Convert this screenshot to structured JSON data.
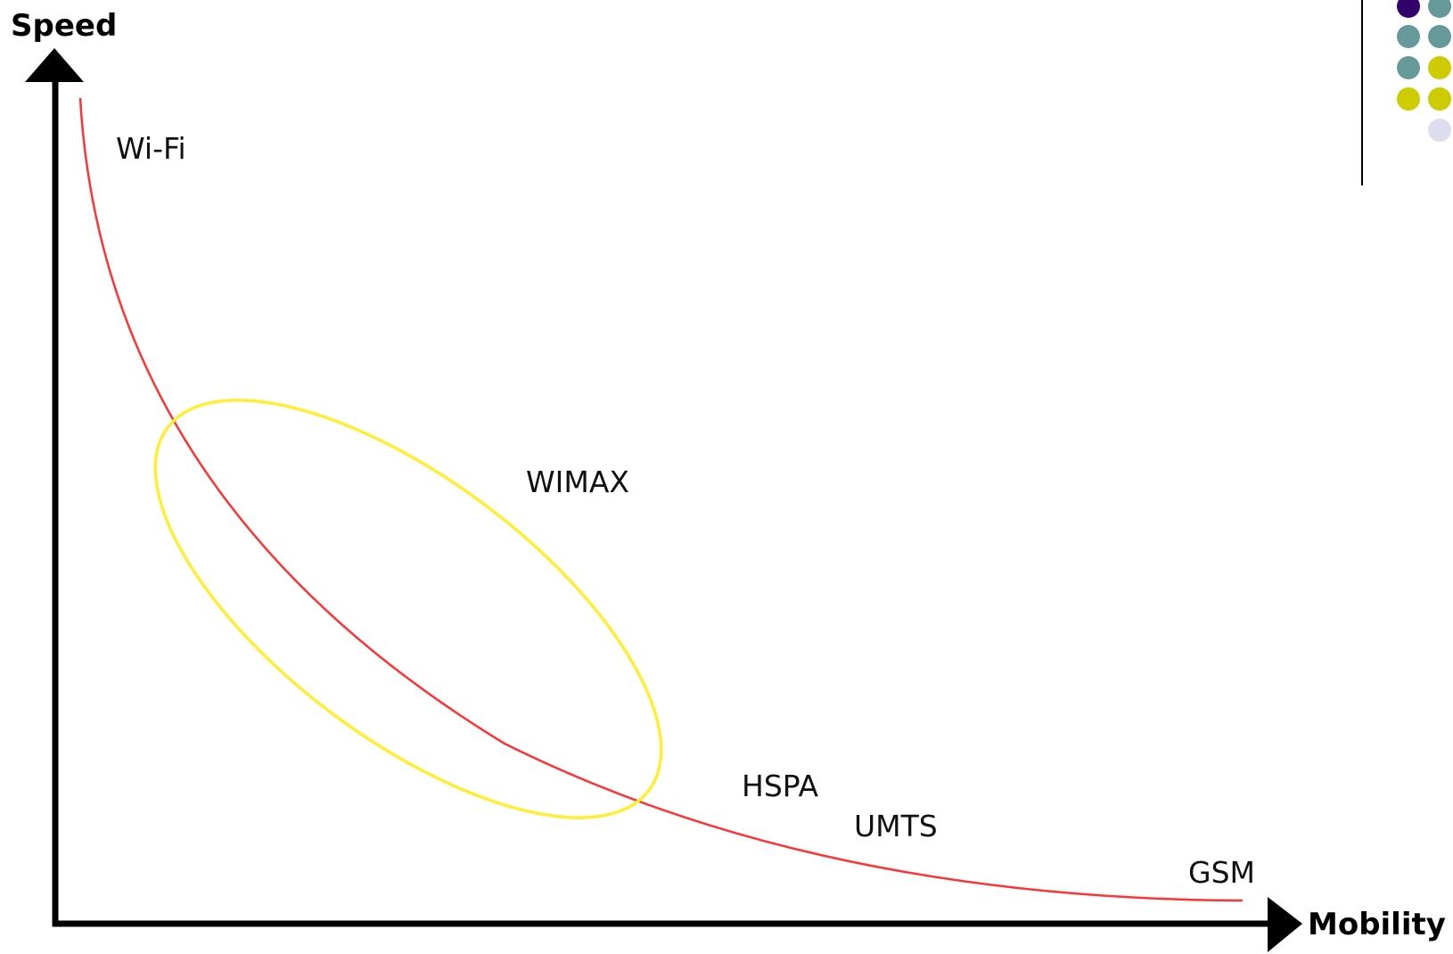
{
  "axes": {
    "y_label": "Speed",
    "x_label": "Mobility"
  },
  "technologies": {
    "wifi": "Wi-Fi",
    "wimax": "WIMAX",
    "hspa": "HSPA",
    "umts": "UMTS",
    "gsm": "GSM"
  },
  "colors": {
    "axis": "#000000",
    "curve": "#ff3333",
    "ellipse": "#ffee33",
    "divider": "#000000"
  },
  "decoration": {
    "dot_colors": [
      "#33006b",
      "#669999",
      "#669999",
      "#669999",
      "#669999",
      "#cccc00",
      "#cccc00",
      "#cccc00",
      "#ddddee"
    ]
  }
}
